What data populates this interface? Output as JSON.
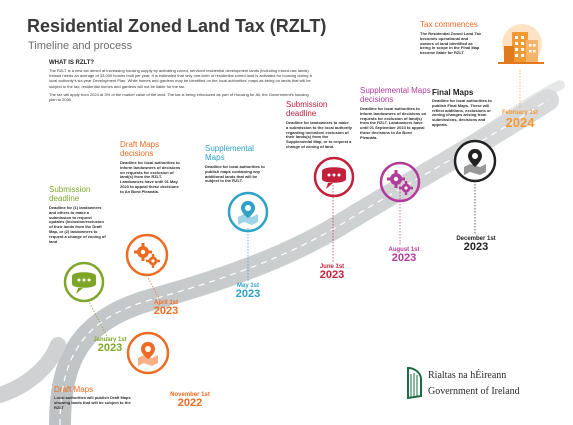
{
  "header": {
    "title": "Residential Zoned Land Tax (RZLT)",
    "subtitle": "Timeline and process"
  },
  "intro": {
    "heading": "WHAT IS RZLT?",
    "para1": "The RZLT is a new tax aimed at increasing housing supply by activating zoned, serviced residential development lands (including mixed-use lands). Ireland needs an average of 33,000 homes built per year. It is estimated that only one-sixth of residential zoned land is activated for housing during a local authority's six-year Development Plan. While homes and gardens may be identified on the local authorities' maps as being on lands that will be subject to the tax, residential homes and gardens will not be liable for the tax.",
    "para2": "The tax will apply from 2024 at 3% of the market value of the land. The tax is being introduced as part of Housing for All, the Government's housing plan to 2030."
  },
  "milestones": [
    {
      "id": "draft-maps-publish",
      "title": "Draft Maps",
      "desc": "Local authorities will publish Draft Maps showing lands that will be subject to the RZLT",
      "date_md": "November 1st",
      "date_yr": "2022",
      "color": "#ee6b22",
      "icon": "map-pin-icon"
    },
    {
      "id": "submission-deadline-1",
      "title": "Submission deadline",
      "desc": "Deadline for (1) landowners and others to make a submission to request updates (inclusion/exclusion of their lands from the Draft Map, or (2) landowners to request a change of zoning of land",
      "date_md": "January 1st",
      "date_yr": "2023",
      "color": "#7ea72a",
      "icon": "speech-bubble-icon"
    },
    {
      "id": "draft-maps-decisions",
      "title": "Draft Maps decisions",
      "desc": "Deadline for local authorities to inform landowners of decisions on requests for exclusion of land(s) from the RZLT. Landowners have until 01 May 2023 to appeal these decisions to An Bord Pleanála.",
      "date_md": "April 1st",
      "date_yr": "2023",
      "color": "#ee6b22",
      "icon": "gears-icon"
    },
    {
      "id": "supplemental-maps",
      "title": "Supplemental Maps",
      "desc": "Deadline for local authorities to publish maps containing any additional lands that will be subject to the RZLT.",
      "date_md": "May 1st",
      "date_yr": "2023",
      "color": "#2fa2c8",
      "icon": "map-pin-icon"
    },
    {
      "id": "submission-deadline-2",
      "title": "Submission deadline",
      "desc": "Deadline for landowners to make a submission to the local authority regarding inclusion/ exclusion of their lands(s) from the Supplemental Map, or to request a change of zoning of land.",
      "date_md": "June 1st",
      "date_yr": "2023",
      "color": "#c3203c",
      "icon": "speech-bubble-icon"
    },
    {
      "id": "supplemental-maps-decisions",
      "title": "Supplemental Maps decisions",
      "desc": "Deadline for local authorities to inform landowners of decisions on requests for exclusion of land(s) from the RZLT. Landowners have until 01 September 2023 to appeal these decisions to An Bord Pleanála.",
      "date_md": "August 1st",
      "date_yr": "2023",
      "color": "#b43a9a",
      "icon": "gears-icon"
    },
    {
      "id": "final-maps",
      "title": "Final Maps",
      "desc": "Deadline for local authorities to publish Final Maps. These will reflect additions, exclusions or zoning changes arising from submissions, decisions and appeals.",
      "date_md": "December 1st",
      "date_yr": "2023",
      "color": "#222222",
      "icon": "map-pin-icon"
    },
    {
      "id": "tax-commences",
      "title": "Tax commences",
      "desc": "The Residential Zoned Land Tax becomes operational and owners of land identified as being in scope in the Final Map become liable for RZLT",
      "date_md": "February 1st",
      "date_yr": "2024",
      "color": "#f29a33",
      "icon": "buildings-icon"
    }
  ],
  "government": {
    "name_irish": "Rialtas na hÉireann",
    "name_english": "Government of Ireland",
    "emblem": "harp-icon"
  }
}
